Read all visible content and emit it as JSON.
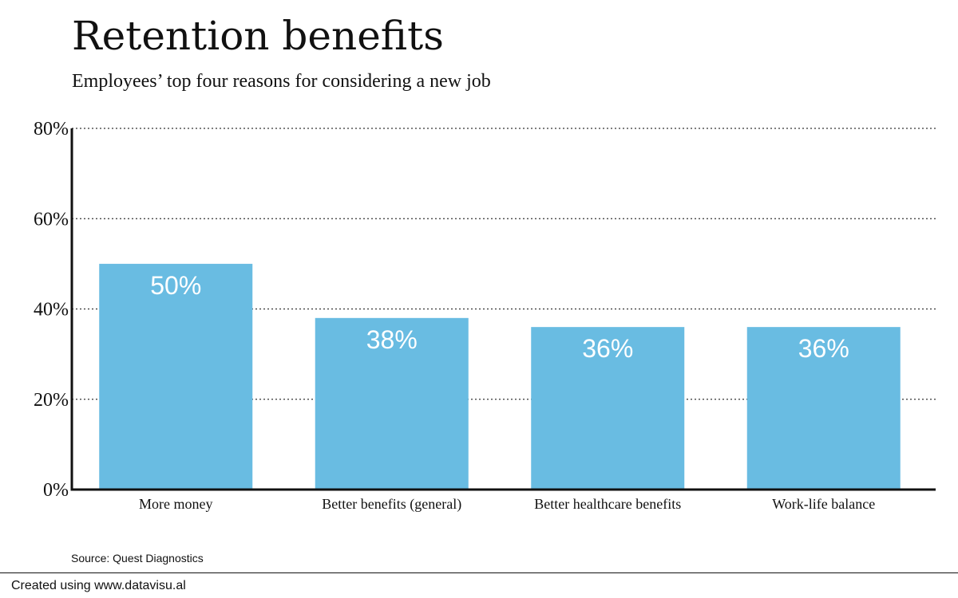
{
  "chart_data": {
    "type": "bar",
    "title": "Retention benefits",
    "subtitle": "Employees’ top four reasons for considering a new job",
    "categories": [
      "More money",
      "Better benefits (general)",
      "Better healthcare benefits",
      "Work-life balance"
    ],
    "values": [
      50,
      38,
      36,
      36
    ],
    "data_labels": [
      "50%",
      "38%",
      "36%",
      "36%"
    ],
    "ylim": [
      0,
      80
    ],
    "yticks": [
      0,
      20,
      40,
      60,
      80
    ],
    "ytick_labels": [
      "0%",
      "20%",
      "40%",
      "60%",
      "80%"
    ],
    "xlabel": "",
    "ylabel": "",
    "grid": true,
    "bar_color": "#69bce2"
  },
  "source": "Source: Quest Diagnostics",
  "credit": "Created using www.datavisu.al"
}
